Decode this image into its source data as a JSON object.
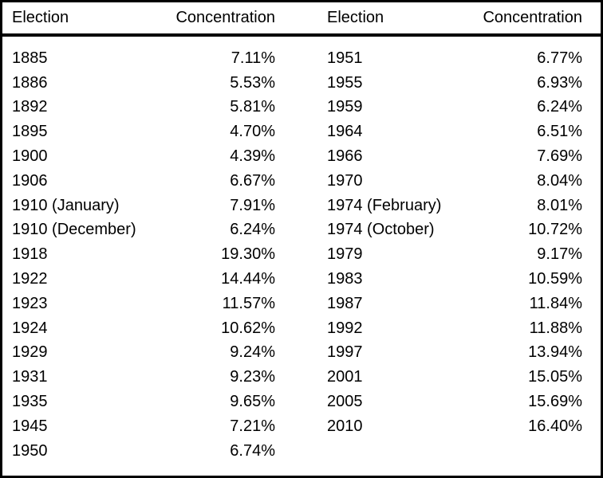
{
  "colors": {
    "text": "#000000",
    "background": "#ffffff",
    "border": "#000000"
  },
  "table": {
    "headers": [
      "Election",
      "Concentration",
      "Election",
      "Concentration"
    ]
  },
  "chart_data": {
    "type": "table",
    "columns": [
      "Election",
      "Concentration"
    ],
    "left_column_row_count": 17,
    "rows": [
      [
        "1885",
        "7.11%"
      ],
      [
        "1886",
        "5.53%"
      ],
      [
        "1892",
        "5.81%"
      ],
      [
        "1895",
        "4.70%"
      ],
      [
        "1900",
        "4.39%"
      ],
      [
        "1906",
        "6.67%"
      ],
      [
        "1910 (January)",
        "7.91%"
      ],
      [
        "1910 (December)",
        "6.24%"
      ],
      [
        "1918",
        "19.30%"
      ],
      [
        "1922",
        "14.44%"
      ],
      [
        "1923",
        "11.57%"
      ],
      [
        "1924",
        "10.62%"
      ],
      [
        "1929",
        "9.24%"
      ],
      [
        "1931",
        "9.23%"
      ],
      [
        "1935",
        "9.65%"
      ],
      [
        "1945",
        "7.21%"
      ],
      [
        "1950",
        "6.74%"
      ],
      [
        "1951",
        "6.77%"
      ],
      [
        "1955",
        "6.93%"
      ],
      [
        "1959",
        "6.24%"
      ],
      [
        "1964",
        "6.51%"
      ],
      [
        "1966",
        "7.69%"
      ],
      [
        "1970",
        "8.04%"
      ],
      [
        "1974 (February)",
        "8.01%"
      ],
      [
        "1974 (October)",
        "10.72%"
      ],
      [
        "1979",
        "9.17%"
      ],
      [
        "1983",
        "10.59%"
      ],
      [
        "1987",
        "11.84%"
      ],
      [
        "1992",
        "11.88%"
      ],
      [
        "1997",
        "13.94%"
      ],
      [
        "2001",
        "15.05%"
      ],
      [
        "2005",
        "15.69%"
      ],
      [
        "2010",
        "16.40%"
      ]
    ]
  }
}
